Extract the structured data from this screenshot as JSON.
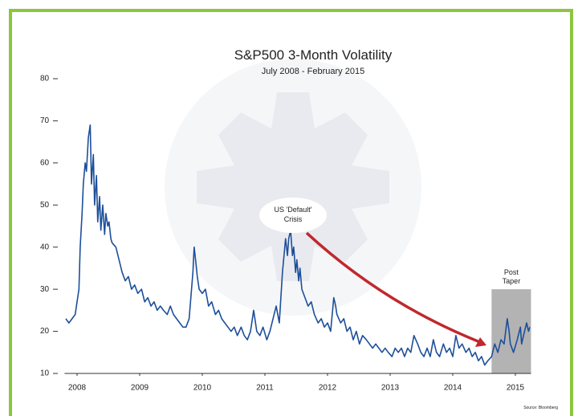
{
  "chart_data": {
    "type": "line",
    "title": "S&P500 3-Month Volatility",
    "subtitle": "July 2008 - February 2015",
    "color": "#1d4f9a",
    "x": [
      2007.82,
      2007.87,
      2007.92,
      2007.97,
      2008.03,
      2008.05,
      2008.08,
      2008.1,
      2008.13,
      2008.15,
      2008.18,
      2008.21,
      2008.23,
      2008.26,
      2008.28,
      2008.31,
      2008.33,
      2008.36,
      2008.38,
      2008.41,
      2008.44,
      2008.46,
      2008.49,
      2008.51,
      2008.54,
      2008.56,
      2008.62,
      2008.67,
      2008.72,
      2008.77,
      2008.82,
      2008.87,
      2008.92,
      2008.97,
      2009.03,
      2009.08,
      2009.13,
      2009.18,
      2009.23,
      2009.28,
      2009.33,
      2009.38,
      2009.44,
      2009.49,
      2009.54,
      2009.59,
      2009.64,
      2009.69,
      2009.74,
      2009.79,
      2009.85,
      2009.87,
      2009.9,
      2009.92,
      2009.95,
      2010.0,
      2010.05,
      2010.1,
      2010.15,
      2010.21,
      2010.26,
      2010.31,
      2010.36,
      2010.41,
      2010.46,
      2010.51,
      2010.56,
      2010.62,
      2010.67,
      2010.72,
      2010.77,
      2010.82,
      2010.87,
      2010.92,
      2010.97,
      2011.03,
      2011.08,
      2011.13,
      2011.18,
      2011.23,
      2011.28,
      2011.33,
      2011.36,
      2011.38,
      2011.41,
      2011.44,
      2011.46,
      2011.49,
      2011.51,
      2011.54,
      2011.56,
      2011.59,
      2011.64,
      2011.69,
      2011.74,
      2011.79,
      2011.85,
      2011.9,
      2011.95,
      2012.0,
      2012.05,
      2012.1,
      2012.13,
      2012.15,
      2012.21,
      2012.26,
      2012.31,
      2012.36,
      2012.41,
      2012.46,
      2012.51,
      2012.56,
      2012.62,
      2012.67,
      2012.72,
      2012.77,
      2012.82,
      2012.87,
      2012.92,
      2012.97,
      2013.03,
      2013.08,
      2013.13,
      2013.18,
      2013.23,
      2013.28,
      2013.33,
      2013.38,
      2013.44,
      2013.49,
      2013.54,
      2013.59,
      2013.64,
      2013.69,
      2013.74,
      2013.79,
      2013.85,
      2013.9,
      2013.95,
      2014.0,
      2014.05,
      2014.1,
      2014.15,
      2014.21,
      2014.26,
      2014.31,
      2014.36,
      2014.41,
      2014.46,
      2014.51,
      2014.56,
      2014.62,
      2014.67,
      2014.72,
      2014.77,
      2014.82,
      2014.87,
      2014.9,
      2014.92,
      2014.97,
      2015.03,
      2015.08,
      2015.1,
      2015.13,
      2015.18,
      2015.21,
      2015.23
    ],
    "values": [
      23,
      22,
      23,
      24,
      30,
      40,
      48,
      55,
      60,
      58,
      66,
      69,
      55,
      62,
      50,
      57,
      46,
      52,
      44,
      50,
      43,
      48,
      45,
      46,
      42,
      41,
      40,
      37,
      34,
      32,
      33,
      30,
      31,
      29,
      30,
      27,
      28,
      26,
      27,
      25,
      26,
      25,
      24,
      26,
      24,
      23,
      22,
      21,
      21,
      23,
      34,
      40,
      36,
      33,
      30,
      29,
      30,
      26,
      27,
      24,
      25,
      23,
      22,
      21,
      20,
      21,
      19,
      21,
      19,
      18,
      20,
      25,
      20,
      19,
      21,
      18,
      20,
      23,
      26,
      22,
      34,
      42,
      38,
      42,
      44,
      38,
      40,
      34,
      37,
      32,
      35,
      30,
      28,
      26,
      27,
      24,
      22,
      23,
      21,
      22,
      20,
      28,
      26,
      24,
      22,
      23,
      20,
      21,
      18,
      20,
      17,
      19,
      18,
      17,
      16,
      17,
      16,
      15,
      16,
      15,
      14,
      16,
      15,
      16,
      14,
      16,
      15,
      19,
      17,
      15,
      14,
      16,
      14,
      18,
      15,
      14,
      17,
      15,
      16,
      14,
      19,
      16,
      17,
      15,
      16,
      14,
      15,
      13,
      14,
      12,
      13,
      14,
      17,
      15,
      18,
      17,
      23,
      20,
      17,
      15,
      18,
      21,
      17,
      19,
      22,
      20,
      21
    ],
    "xlim": [
      2007.8,
      2015.25
    ],
    "ylim": [
      10,
      80
    ],
    "xticks": [
      2008,
      2009,
      2010,
      2011,
      2012,
      2013,
      2014,
      2015
    ],
    "yticks": [
      10,
      20,
      30,
      40,
      50,
      60,
      70,
      80
    ],
    "callout": {
      "lines": [
        "US 'Default'",
        "Crisis"
      ]
    },
    "shaded_region": {
      "lines": [
        "Post",
        "Taper"
      ],
      "x": [
        2014.62,
        2015.25
      ],
      "y": [
        10,
        30
      ]
    },
    "source": "Source: Bloomberg"
  }
}
